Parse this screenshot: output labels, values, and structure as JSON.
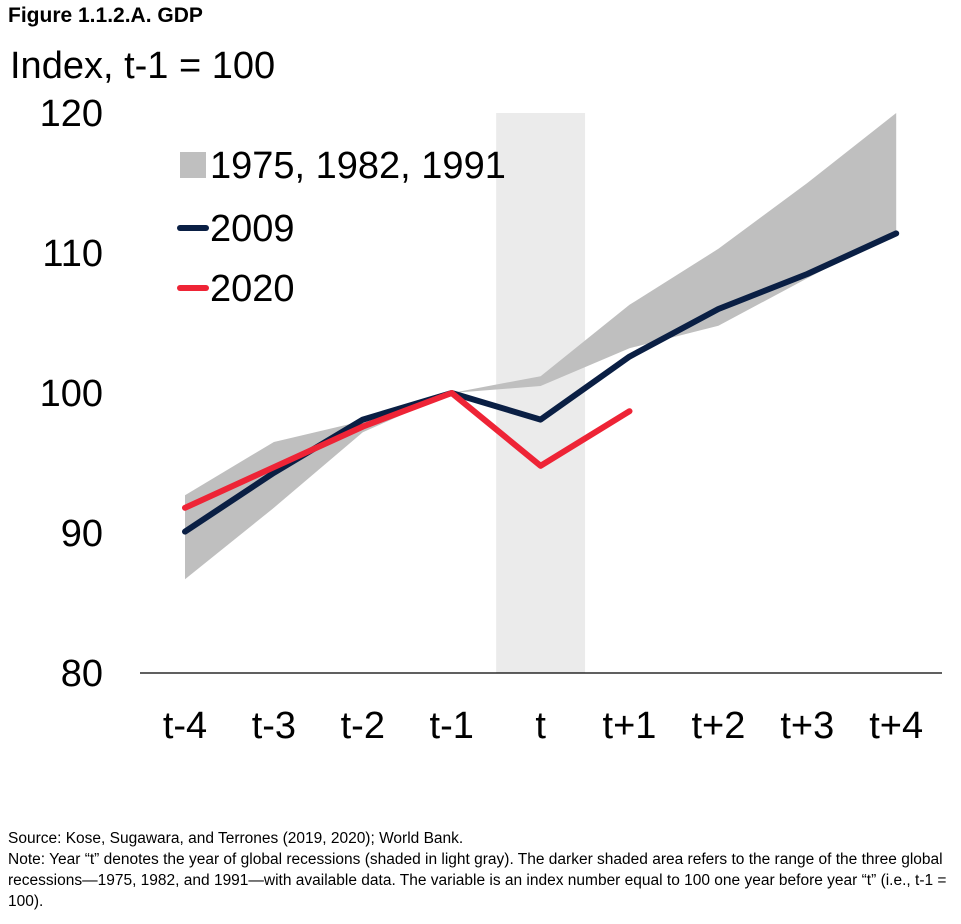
{
  "figure_title": "Figure 1.1.2.A. GDP",
  "chart_data": {
    "type": "line",
    "title": "Figure 1.1.2.A. GDP",
    "ylabel": "Index, t-1 = 100",
    "categories": [
      "t-4",
      "t-3",
      "t-2",
      "t-1",
      "t",
      "t+1",
      "t+2",
      "t+3",
      "t+4"
    ],
    "ylim": [
      80,
      120
    ],
    "yticks": [
      80,
      90,
      100,
      110,
      120
    ],
    "recession_shading": {
      "category": "t",
      "color": "#ebebeb"
    },
    "range_band": {
      "name": "1975, 1982, 1991",
      "color": "#bfbfbf",
      "upper": [
        92.7,
        96.5,
        98.0,
        100.0,
        101.2,
        106.3,
        110.3,
        115.0,
        120.0
      ],
      "lower": [
        86.7,
        91.8,
        97.2,
        100.0,
        100.5,
        103.2,
        104.8,
        108.2,
        111.5
      ]
    },
    "series": [
      {
        "name": "2009",
        "color": "#0a1f44",
        "values": [
          90.1,
          94.3,
          98.1,
          100.0,
          98.1,
          102.6,
          106.0,
          108.5,
          111.4
        ]
      },
      {
        "name": "2020",
        "color": "#ee2436",
        "values": [
          91.8,
          94.7,
          97.6,
          100.0,
          94.8,
          98.7,
          null,
          null,
          null
        ]
      }
    ],
    "legend": {
      "placement": "top-left",
      "entries": [
        "1975, 1982, 1991",
        "2009",
        "2020"
      ]
    },
    "grid": false
  },
  "footer": {
    "source": "Source: Kose, Sugawara, and Terrones (2019, 2020); World Bank.",
    "note": "Note: Year “t” denotes the year of global recessions (shaded in light gray). The darker shaded area refers to the range of the three global recessions—1975, 1982, and 1991—with available data. The variable is an index number equal to 100 one year before year “t” (i.e., t-1 = 100)."
  }
}
